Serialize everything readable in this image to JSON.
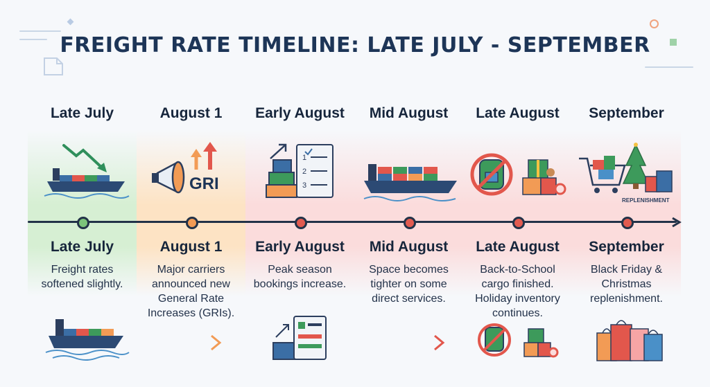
{
  "title": "FREIGHT RATE TIMELINE: LATE JULY - SEPTEMBER",
  "colors": {
    "green": "#d6efd3",
    "orange": "#fde3c4",
    "red": "#fbdcdc",
    "marker_green": "#7cc37a",
    "marker_orange": "#f29b55",
    "marker_red": "#e25b50",
    "line": "#223248"
  },
  "columns": [
    {
      "label": "Late July",
      "sublabel": "Late July",
      "description": "Freight rates softened slightly.",
      "icon": "ship-with-down-arrow-icon",
      "bottom_icon": "cargo-ship-icon",
      "tone": "green"
    },
    {
      "label": "August 1",
      "sublabel": "August 1",
      "description": "Major carriers announced new General Rate Increases (GRIs).",
      "icon": "megaphone-gri-icon",
      "icon_text": "GRI",
      "bottom_icon": "right-arrow-icon",
      "tone": "orange"
    },
    {
      "label": "Early August",
      "sublabel": "Early August",
      "description": "Peak season bookings increase.",
      "icon": "containers-checklist-icon",
      "checklist": [
        "1",
        "2",
        "3"
      ],
      "bottom_icon": "booking-form-icon",
      "tone": "red"
    },
    {
      "label": "Mid August",
      "sublabel": "Mid August",
      "description": "Space becomes tighter on some direct services.",
      "icon": "loaded-ship-icon",
      "bottom_icon": "right-arrow-icon",
      "tone": "red"
    },
    {
      "label": "Late August",
      "sublabel": "Late August",
      "description": "Back-to-School cargo finished. Holiday inventory continues.",
      "icon": "no-backpack-gifts-icon",
      "bottom_icon": "no-backpack-gifts-icon",
      "tone": "red"
    },
    {
      "label": "September",
      "sublabel": "September",
      "description": "Black Friday & Christmas replenishment.",
      "icon": "christmas-shopping-icon",
      "icon_text": "REPLENISHMENT",
      "bottom_icon": "shopping-bags-icon",
      "tone": "red"
    }
  ]
}
